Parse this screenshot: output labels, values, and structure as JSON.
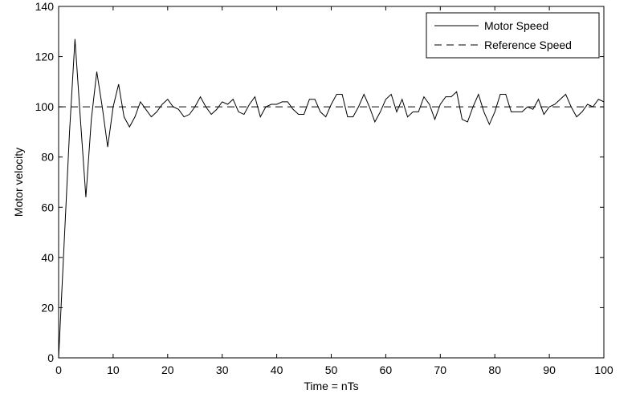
{
  "chart_data": {
    "type": "line",
    "title": "",
    "xlabel": "Time = nTs",
    "ylabel": "Motor velocity",
    "xlim": [
      0,
      100
    ],
    "ylim": [
      0,
      140
    ],
    "xticks": [
      0,
      10,
      20,
      30,
      40,
      50,
      60,
      70,
      80,
      90,
      100
    ],
    "yticks": [
      0,
      20,
      40,
      60,
      80,
      100,
      120,
      140
    ],
    "grid": false,
    "legend_position": "top-right",
    "series": [
      {
        "name": "Motor Speed",
        "style": "solid",
        "color": "#000000",
        "x": [
          0,
          1,
          2,
          3,
          4,
          5,
          6,
          7,
          8,
          9,
          10,
          11,
          12,
          13,
          14,
          15,
          16,
          17,
          18,
          19,
          20,
          21,
          22,
          23,
          24,
          25,
          26,
          27,
          28,
          29,
          30,
          31,
          32,
          33,
          34,
          35,
          36,
          37,
          38,
          39,
          40,
          41,
          42,
          43,
          44,
          45,
          46,
          47,
          48,
          49,
          50,
          51,
          52,
          53,
          54,
          55,
          56,
          57,
          58,
          59,
          60,
          61,
          62,
          63,
          64,
          65,
          66,
          67,
          68,
          69,
          70,
          71,
          72,
          73,
          74,
          75,
          76,
          77,
          78,
          79,
          80,
          81,
          82,
          83,
          84,
          85,
          86,
          87,
          88,
          89,
          90,
          91,
          92,
          93,
          94,
          95,
          96,
          97,
          98,
          99,
          100
        ],
        "values": [
          0,
          45,
          90,
          127,
          95,
          64,
          95,
          114,
          100,
          84,
          100,
          109,
          96,
          92,
          96,
          102,
          99,
          96,
          98,
          101,
          103,
          100,
          99,
          96,
          97,
          100,
          104,
          100,
          97,
          99,
          102,
          101,
          103,
          98,
          97,
          101,
          104,
          96,
          100,
          101,
          101,
          102,
          102,
          99,
          97,
          97,
          103,
          103,
          98,
          96,
          101,
          105,
          105,
          96,
          96,
          100,
          105,
          100,
          94,
          98,
          103,
          105,
          98,
          103,
          96,
          98,
          98,
          104,
          101,
          95,
          101,
          104,
          104,
          106,
          95,
          94,
          100,
          105,
          98,
          93,
          98,
          105,
          105,
          98,
          98,
          98,
          100,
          99,
          103,
          97,
          100,
          101,
          103,
          105,
          100,
          96,
          98,
          101,
          100,
          103,
          102
        ]
      },
      {
        "name": "Reference Speed",
        "style": "dashed",
        "color": "#000000",
        "x": [
          0,
          100
        ],
        "values": [
          100,
          100
        ]
      }
    ]
  }
}
